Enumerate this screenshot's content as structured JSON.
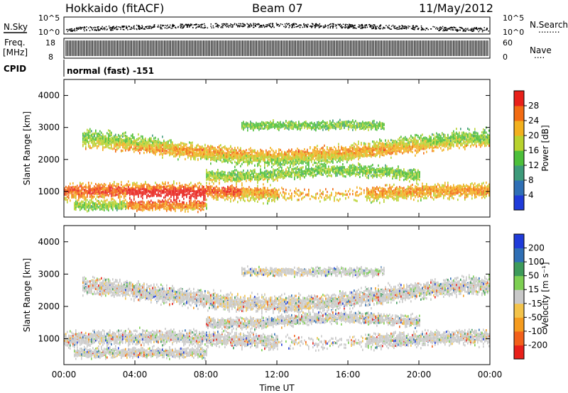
{
  "header": {
    "station": "Hokkaido (fitACF)",
    "beam": "Beam 07",
    "date": "11/May/2012"
  },
  "nsky_panel": {
    "label": "N.Sky",
    "right_label": "N.Search",
    "right_dots": "........",
    "yticks_left": [
      "10^5",
      "10^0"
    ],
    "yticks_right": [
      "10^5",
      "10^0"
    ]
  },
  "freq_panel": {
    "label": "Freq.",
    "unit": "[MHz]",
    "yticks_left": [
      "18",
      "8"
    ],
    "right_label": "Nave",
    "right_dots": "....",
    "yticks_right": [
      "60",
      "0"
    ]
  },
  "cpid_panel": {
    "label": "CPID",
    "value": "normal (fast) -151"
  },
  "chart_data": [
    {
      "type": "heatmap",
      "name": "power",
      "ylabel": "Slant Range [km]",
      "yticks": [
        "1000",
        "2000",
        "3000",
        "4000"
      ],
      "ylim": [
        200,
        4500
      ],
      "x": [
        "00:00",
        "04:00",
        "08:00",
        "12:00",
        "16:00",
        "20:00",
        "00:00"
      ],
      "colorbar": {
        "label": "Power [dB]",
        "ticks": [
          "4",
          "8",
          "12",
          "16",
          "20",
          "24",
          "28"
        ],
        "range": [
          0,
          30
        ],
        "colors": [
          "#1f3bd9",
          "#2f6fb5",
          "#3d9a7a",
          "#4cbf3a",
          "#b8d22e",
          "#f2b01e",
          "#f26b12",
          "#e8201a"
        ]
      }
    },
    {
      "type": "heatmap",
      "name": "velocity",
      "ylabel": "Slant Range [km]",
      "yticks": [
        "1000",
        "2000",
        "3000",
        "4000"
      ],
      "ylim": [
        200,
        4500
      ],
      "x": [
        "00:00",
        "04:00",
        "08:00",
        "12:00",
        "16:00",
        "20:00",
        "00:00"
      ],
      "xlabel": "Time UT",
      "colorbar": {
        "label": "Velocity [m s⁻¹]",
        "ticks": [
          "-200",
          "-100",
          "-50",
          "-15",
          "15",
          "50",
          "100",
          "200"
        ],
        "colors": [
          "#e8201a",
          "#f2601a",
          "#f59b1e",
          "#f3c34a",
          "#c8c8c8",
          "#7dcf52",
          "#3d9a5a",
          "#2f6fb5",
          "#1f3bd9"
        ]
      }
    }
  ]
}
